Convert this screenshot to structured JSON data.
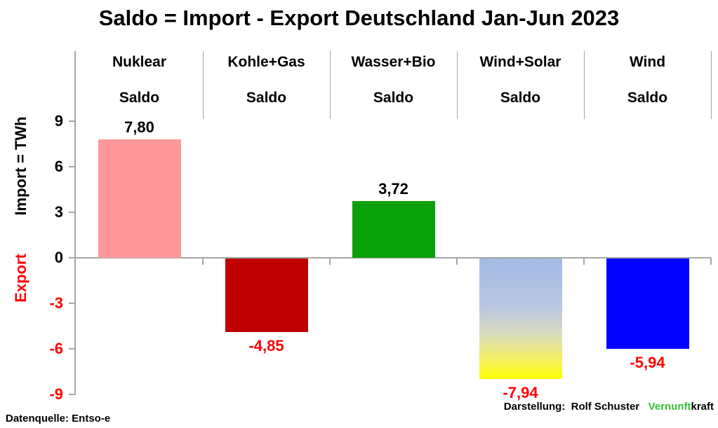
{
  "title": "Saldo = Import - Export Deutschland Jan-Jun 2023",
  "y_axis": {
    "label_import": "Import = TWh",
    "label_export": "Export"
  },
  "footer": {
    "left": "Datenquelle: Entso-e",
    "right_prefix": "Darstellung:  Rolf Schuster   ",
    "brand_green": "Vernunft",
    "brand_black": "kraft"
  },
  "colors": {
    "axis": "#a6a6a6",
    "positive_text": "#000000",
    "negative_text": "#ff0000",
    "brand_green": "#35C435"
  },
  "chart_data": {
    "type": "bar",
    "title": "Saldo = Import - Export Deutschland Jan-Jun 2023",
    "unit": "TWh",
    "ylabel": "Import = TWh",
    "ylabel_negative": "Export",
    "categories": [
      "Nuklear",
      "Kohle+Gas",
      "Wasser+Bio",
      "Wind+Solar",
      "Wind"
    ],
    "category_sublabel": "Saldo",
    "values": [
      7.8,
      -4.85,
      3.72,
      -7.94,
      -5.94
    ],
    "value_labels": [
      "7,80",
      "-4,85",
      "3,72",
      "-7,94",
      "-5,94"
    ],
    "bar_fills": [
      "#FF9999",
      "#C00000",
      "#0AA00A",
      "gradient:wind_solar",
      "#0000FF"
    ],
    "gradients": {
      "wind_solar": [
        [
          "#A4BAE4",
          0
        ],
        [
          "#B7C5E2",
          38
        ],
        [
          "#D8DBC2",
          62
        ],
        [
          "#F4F05E",
          85
        ],
        [
          "#FFFF00",
          100
        ]
      ]
    },
    "yticks": [
      9,
      6,
      3,
      0,
      -3,
      -6,
      -9
    ],
    "ylim": [
      -9,
      13.5
    ],
    "grid": false,
    "legend": false
  }
}
